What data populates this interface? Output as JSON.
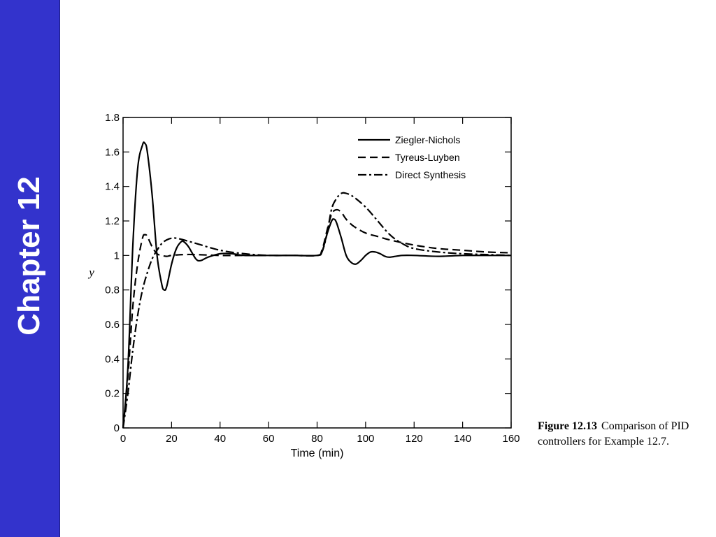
{
  "slide": {
    "chapter": "Chapter 12",
    "caption_number": "Figure 12.13",
    "caption_text": "Comparison of PID controllers for Example 12.7.",
    "sidebar_color": "#3333cc"
  },
  "chart_data": {
    "type": "line",
    "title": "",
    "xlabel": "Time (min)",
    "ylabel": "y",
    "xlim": [
      0,
      160
    ],
    "ylim": [
      0,
      1.8
    ],
    "xticks": [
      0,
      20,
      40,
      60,
      80,
      100,
      120,
      140,
      160
    ],
    "yticks": [
      {
        "v": 0,
        "label": "0"
      },
      {
        "v": 0.2,
        "label": "0.2"
      },
      {
        "v": 0.4,
        "label": "0.4"
      },
      {
        "v": 0.6,
        "label": "0.6"
      },
      {
        "v": 0.8,
        "label": "0.8"
      },
      {
        "v": 1,
        "label": "1"
      },
      {
        "v": 1.2,
        "label": "1.2"
      },
      {
        "v": 1.4,
        "label": "1.4"
      },
      {
        "v": 1.6,
        "label": "1.6"
      },
      {
        "v": 1.8,
        "label": "1.8"
      }
    ],
    "grid": false,
    "legend_position": "top-right",
    "series": [
      {
        "name": "Ziegler-Nichols",
        "style": "solid",
        "x": [
          0,
          2,
          4,
          6,
          8,
          9,
          10,
          12,
          14,
          16,
          17,
          18,
          20,
          22,
          24,
          25,
          27,
          30,
          32,
          35,
          40,
          45,
          50,
          60,
          70,
          80,
          82,
          84,
          86,
          87,
          88,
          90,
          92,
          94,
          96,
          98,
          100,
          102,
          104,
          106,
          108,
          110,
          115,
          120,
          130,
          140,
          150,
          160
        ],
        "y": [
          0,
          0.35,
          1.05,
          1.5,
          1.64,
          1.65,
          1.6,
          1.35,
          1.0,
          0.83,
          0.8,
          0.82,
          0.95,
          1.04,
          1.08,
          1.08,
          1.05,
          0.98,
          0.97,
          0.99,
          1.01,
          1.01,
          1.0,
          1.0,
          1.0,
          1.0,
          1.02,
          1.12,
          1.2,
          1.21,
          1.19,
          1.1,
          1.0,
          0.96,
          0.95,
          0.97,
          1.0,
          1.02,
          1.02,
          1.01,
          0.995,
          0.99,
          1.0,
          1.0,
          0.995,
          1.0,
          1.0,
          1.0
        ]
      },
      {
        "name": "Tyreus-Luyben",
        "style": "dashed",
        "x": [
          0,
          2,
          4,
          6,
          8,
          9,
          10,
          12,
          14,
          16,
          18,
          20,
          25,
          30,
          40,
          50,
          60,
          70,
          80,
          82,
          84,
          86,
          88,
          90,
          92,
          95,
          100,
          105,
          110,
          120,
          130,
          140,
          150,
          160
        ],
        "y": [
          0,
          0.3,
          0.7,
          0.95,
          1.1,
          1.12,
          1.11,
          1.05,
          1.01,
          1.0,
          0.995,
          1.0,
          1.005,
          1.005,
          1.0,
          1.0,
          1.0,
          1.0,
          1.0,
          1.03,
          1.14,
          1.24,
          1.265,
          1.25,
          1.21,
          1.17,
          1.13,
          1.11,
          1.09,
          1.06,
          1.04,
          1.03,
          1.02,
          1.015
        ]
      },
      {
        "name": "Direct Synthesis",
        "style": "dashdot",
        "x": [
          0,
          2,
          4,
          6,
          8,
          10,
          12,
          14,
          16,
          18,
          20,
          22,
          25,
          30,
          40,
          50,
          60,
          70,
          80,
          82,
          84,
          86,
          88,
          90,
          92,
          95,
          100,
          105,
          110,
          115,
          120,
          130,
          140,
          150,
          160
        ],
        "y": [
          0,
          0.2,
          0.45,
          0.65,
          0.8,
          0.9,
          0.98,
          1.03,
          1.07,
          1.09,
          1.1,
          1.1,
          1.09,
          1.07,
          1.03,
          1.01,
          1.0,
          1.0,
          1.0,
          1.02,
          1.12,
          1.27,
          1.33,
          1.36,
          1.36,
          1.34,
          1.28,
          1.2,
          1.12,
          1.07,
          1.04,
          1.02,
          1.01,
          1.005,
          1.0
        ]
      }
    ]
  }
}
